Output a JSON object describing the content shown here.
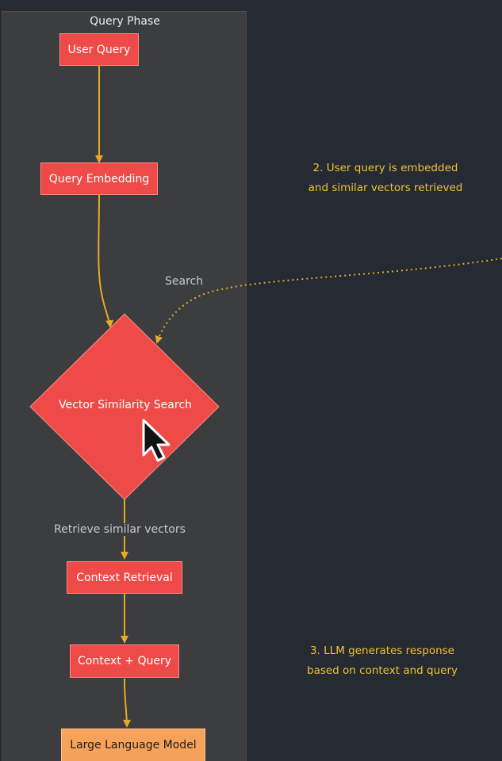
{
  "phase": {
    "title": "Query Phase"
  },
  "nodes": {
    "user_query": "User Query",
    "query_embedding": "Query Embedding",
    "vector_search": "Vector Similarity Search",
    "context_retrieval": "Context Retrieval",
    "context_query": "Context + Query",
    "llm": "Large Language Model"
  },
  "edges": {
    "search": "Search",
    "retrieve": "Retrieve similar vectors"
  },
  "notes": {
    "step2_line1": "2. User query is embedded",
    "step2_line2": "and similar vectors retrieved",
    "step3_line1": "3. LLM generates response",
    "step3_line2": "based on context and query"
  },
  "colors": {
    "background": "#252a33",
    "panel": "#3b3d3f",
    "node": "#ee4b48",
    "llm_node": "#f7a25a",
    "edge": "#e6a82a",
    "note_text": "#f1c232"
  },
  "icons": {
    "pointer": "mouse-pointer-icon"
  }
}
